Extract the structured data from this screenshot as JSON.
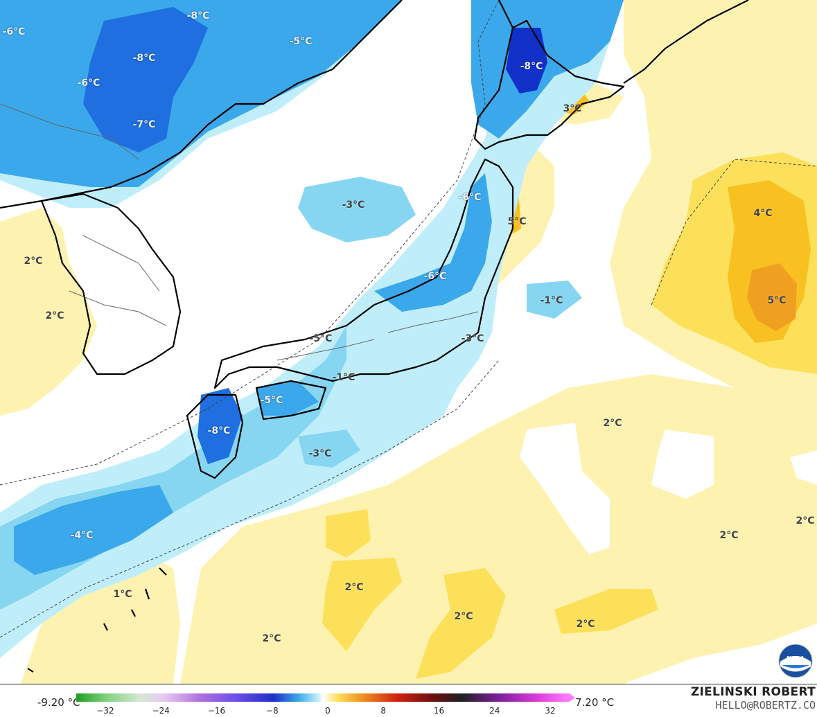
{
  "map": {
    "labels": [
      {
        "text": "-6°C"
      },
      {
        "text": "-8°C"
      },
      {
        "text": "-5°C"
      },
      {
        "text": "-8°C"
      },
      {
        "text": "-6°C"
      },
      {
        "text": "-7°C"
      },
      {
        "text": "-8°C"
      },
      {
        "text": "3°C"
      },
      {
        "text": "-6°C"
      },
      {
        "text": "5°C"
      },
      {
        "text": "-3°C"
      },
      {
        "text": "4°C"
      },
      {
        "text": "2°C"
      },
      {
        "text": "2°C"
      },
      {
        "text": "-1°C"
      },
      {
        "text": "5°C"
      },
      {
        "text": "-6°C"
      },
      {
        "text": "-5°C"
      },
      {
        "text": "-3°C"
      },
      {
        "text": "-1°C"
      },
      {
        "text": "-5°C"
      },
      {
        "text": "-8°C"
      },
      {
        "text": "-3°C"
      },
      {
        "text": "2°C"
      },
      {
        "text": "2°C"
      },
      {
        "text": "2°C"
      },
      {
        "text": "-4°C"
      },
      {
        "text": "1°C"
      },
      {
        "text": "2°C"
      },
      {
        "text": "2°C"
      },
      {
        "text": "2°C"
      },
      {
        "text": "2°C"
      }
    ]
  },
  "legend": {
    "min": "-9.20 °C",
    "max": "7.20 °C",
    "ticks": [
      "−32",
      "−24",
      "−16",
      "−8",
      "0",
      "8",
      "16",
      "24",
      "32"
    ],
    "unit": "°C",
    "value_range": [
      -32,
      32
    ]
  },
  "credit": {
    "author": "ZIELINSKI ROBERT",
    "email": "HELLO@ROBERTZ.CO"
  },
  "logo": {
    "name": "noaa-logo",
    "text": "NOAA"
  },
  "colors": {
    "ocean_neutral": "#ffffff",
    "cold_light": "#bfeefa",
    "cold_mid": "#86d6f2",
    "cold_deep": "#3aa8ea",
    "cold_strong": "#1f6fe0",
    "cold_extreme": "#1030c8",
    "warm_light": "#fdf2b0",
    "warm_mid": "#fde05a",
    "warm_strong": "#f8c020",
    "warm_peak": "#f0a020",
    "coast": "#000000",
    "border": "#555555"
  }
}
